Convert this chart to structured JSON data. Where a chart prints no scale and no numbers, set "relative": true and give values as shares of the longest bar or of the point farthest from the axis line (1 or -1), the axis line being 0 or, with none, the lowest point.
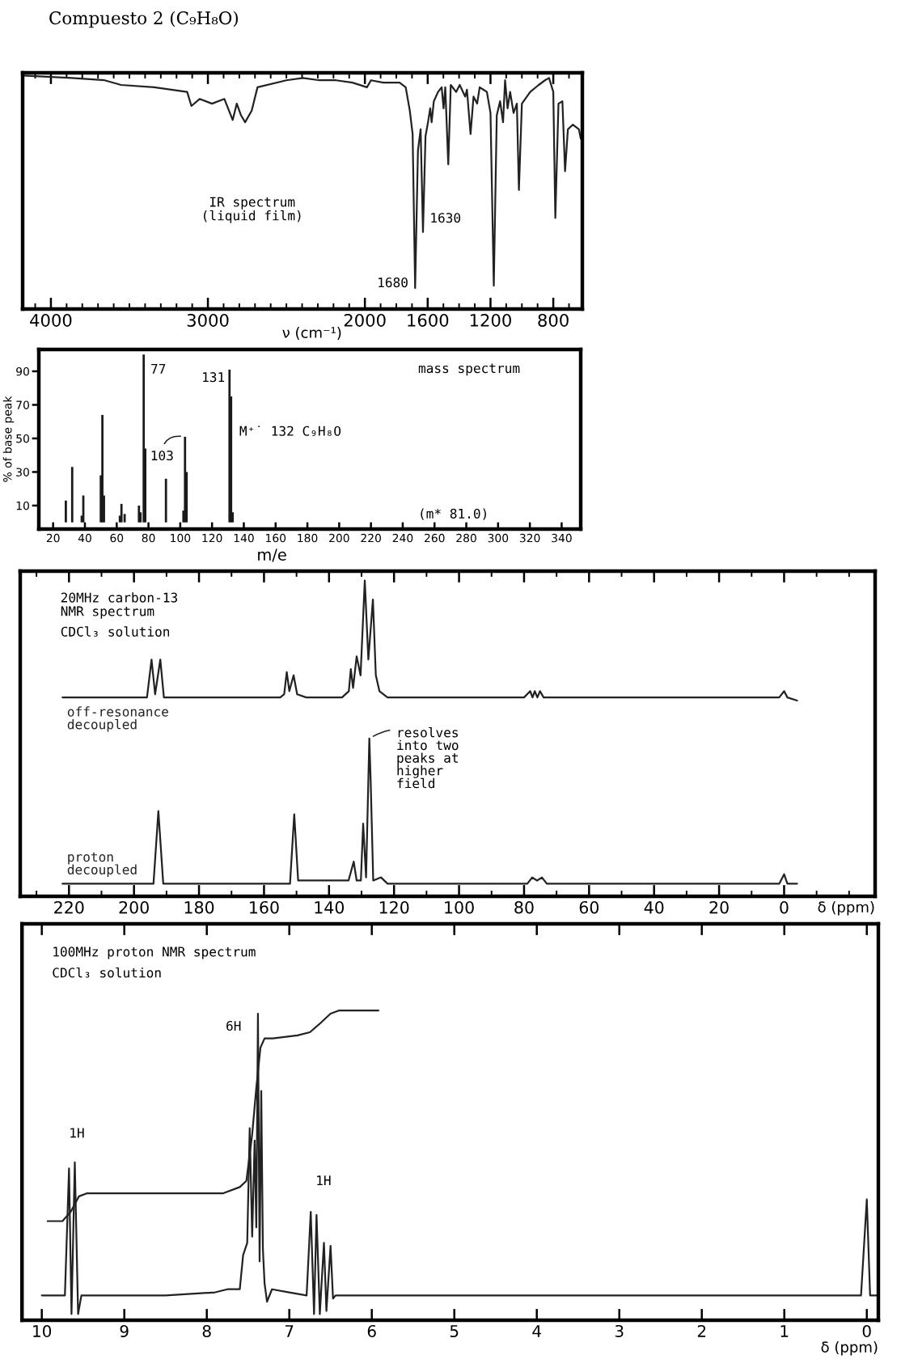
{
  "chart_data": [
    {
      "type": "line",
      "title": "Compuesto 2 (C₉H₈O)",
      "xlabel": "ν (cm⁻¹)",
      "relative": true,
      "xlim": [
        4180,
        615
      ],
      "xticks": [
        {
          "value": 4100,
          "label": null
        },
        4000,
        {
          "value": 3900,
          "label": null
        },
        {
          "value": 3800,
          "label": null
        },
        {
          "value": 3700,
          "label": null
        },
        {
          "value": 3600,
          "label": null
        },
        {
          "value": 3500,
          "label": null
        },
        {
          "value": 3400,
          "label": null
        },
        {
          "value": 3300,
          "label": null
        },
        {
          "value": 3200,
          "label": null
        },
        {
          "value": 3100,
          "label": null
        },
        3000,
        {
          "value": 2900,
          "label": null
        },
        {
          "value": 2800,
          "label": null
        },
        {
          "value": 2700,
          "label": null
        },
        {
          "value": 2600,
          "label": null
        },
        {
          "value": 2500,
          "label": null
        },
        {
          "value": 2400,
          "label": null
        },
        {
          "value": 2300,
          "label": null
        },
        {
          "value": 2200,
          "label": null
        },
        {
          "value": 2100,
          "label": null
        },
        2000,
        {
          "value": 1900,
          "label": null
        },
        {
          "value": 1800,
          "label": null
        },
        {
          "value": 1700,
          "label": null
        },
        1600,
        {
          "value": 1500,
          "label": null
        },
        {
          "value": 1400,
          "label": null
        },
        {
          "value": 1300,
          "label": null
        },
        1200,
        {
          "value": 1100,
          "label": null
        },
        {
          "value": 1000,
          "label": null
        },
        {
          "value": 900,
          "label": null
        },
        800,
        {
          "value": 700,
          "label": null
        }
      ],
      "x": [
        4180,
        3868,
        3658,
        3553,
        3342,
        3132,
        3105,
        3053,
        2974,
        2895,
        2842,
        2816,
        2789,
        2763,
        2721,
        2684,
        2500,
        2395,
        2289,
        2184,
        2079,
        1987,
        1961,
        1883,
        1779,
        1740,
        1714,
        1696,
        1680,
        1662,
        1645,
        1630,
        1614,
        1598,
        1584,
        1575,
        1561,
        1534,
        1511,
        1499,
        1488,
        1469,
        1453,
        1419,
        1396,
        1361,
        1350,
        1327,
        1308,
        1285,
        1269,
        1246,
        1223,
        1200,
        1179,
        1160,
        1139,
        1120,
        1107,
        1091,
        1075,
        1053,
        1032,
        1019,
        1000,
        947,
        893,
        853,
        827,
        800,
        787,
        767,
        742,
        725,
        707,
        675,
        637,
        625
      ],
      "series": [
        {
          "color": "#222222",
          "values": [
            1.0,
            0.99,
            0.98,
            0.96,
            0.95,
            0.93,
            0.87,
            0.9,
            0.88,
            0.9,
            0.81,
            0.88,
            0.83,
            0.8,
            0.85,
            0.95,
            0.98,
            0.99,
            0.98,
            0.98,
            0.97,
            0.95,
            0.98,
            0.97,
            0.97,
            0.95,
            0.85,
            0.75,
            0.09,
            0.68,
            0.77,
            0.33,
            0.74,
            0.8,
            0.86,
            0.8,
            0.89,
            0.93,
            0.95,
            0.86,
            0.95,
            0.62,
            0.96,
            0.93,
            0.96,
            0.91,
            0.94,
            0.75,
            0.91,
            0.88,
            0.95,
            0.94,
            0.93,
            0.84,
            0.1,
            0.83,
            0.89,
            0.8,
            0.98,
            0.86,
            0.93,
            0.84,
            0.88,
            0.51,
            0.88,
            0.93,
            0.96,
            0.98,
            0.99,
            0.93,
            0.39,
            0.88,
            0.89,
            0.59,
            0.77,
            0.79,
            0.77,
            0.73
          ]
        }
      ],
      "annotations": [
        "IR spectrum\n(liquid film)",
        {
          "text": "1630",
          "x": 1630,
          "y": 0.33
        },
        {
          "text": "1680",
          "x": 1680,
          "y": 0.09
        }
      ]
    },
    {
      "type": "bar",
      "xlabel": "m/e",
      "ylabel": "% of base peak",
      "xlim": [
        11,
        352
      ],
      "xticks": [
        20,
        40,
        60,
        80,
        100,
        120,
        140,
        160,
        180,
        200,
        220,
        240,
        260,
        280,
        300,
        320,
        340
      ],
      "ylim": [
        -4,
        103
      ],
      "yticks": [
        10,
        30,
        50,
        70,
        90
      ],
      "x": [
        28,
        32,
        38,
        39,
        50,
        51,
        52,
        62,
        63,
        65,
        74,
        75,
        77,
        78,
        91,
        102,
        103,
        104,
        131,
        132,
        133
      ],
      "series": [
        {
          "color": "#1a1a1a",
          "values": [
            13,
            33,
            4,
            16,
            28,
            64,
            16,
            4,
            11,
            5,
            10,
            6,
            100,
            44,
            26,
            7,
            51,
            30,
            91,
            75,
            6
          ]
        }
      ],
      "annotations": [
        "mass spectrum",
        "(m* 81.0)",
        "M⁺˙ 132 C₉H₈O",
        {
          "text": "77",
          "x": 77,
          "y": 100
        },
        {
          "text": "103",
          "x": 103,
          "y": 51
        },
        {
          "text": "131",
          "x": 131,
          "y": 91
        }
      ]
    },
    {
      "type": "line",
      "xlabel": "δ (ppm)",
      "relative": true,
      "xlim": [
        235,
        -28
      ],
      "xticks": [
        {
          "value": 230,
          "label": null
        },
        220,
        {
          "value": 210,
          "label": null
        },
        200,
        {
          "value": 190,
          "label": null
        },
        180,
        {
          "value": 170,
          "label": null
        },
        160,
        {
          "value": 150,
          "label": null
        },
        140,
        {
          "value": 130,
          "label": null
        },
        120,
        {
          "value": 110,
          "label": null
        },
        100,
        {
          "value": 90,
          "label": null
        },
        80,
        {
          "value": 70,
          "label": null
        },
        60,
        {
          "value": 50,
          "label": null
        },
        40,
        {
          "value": 30,
          "label": null
        },
        20,
        {
          "value": 10,
          "label": null
        },
        0,
        {
          "value": -10,
          "label": null
        },
        {
          "value": -20,
          "label": null
        }
      ],
      "series": [
        {
          "name": "off-resonance\ndecoupled",
          "color": "#222222",
          "x": [
            222,
            196,
            194.6,
            193.5,
            191.9,
            190.8,
            155,
            153.8,
            153.0,
            152.2,
            150.9,
            149.8,
            147,
            136,
            133.9,
            133.3,
            132.6,
            131.5,
            130.3,
            129.0,
            127.9,
            126.5,
            125.6,
            124.5,
            122,
            80,
            78.1,
            77.4,
            76.7,
            75.9,
            75.1,
            74,
            1.5,
            0,
            -1,
            -4
          ],
          "values": [
            0.63,
            0.63,
            0.75,
            0.64,
            0.75,
            0.63,
            0.63,
            0.64,
            0.71,
            0.65,
            0.7,
            0.64,
            0.63,
            0.63,
            0.65,
            0.72,
            0.66,
            0.76,
            0.7,
            1.0,
            0.75,
            0.94,
            0.7,
            0.65,
            0.63,
            0.63,
            0.65,
            0.63,
            0.65,
            0.63,
            0.65,
            0.63,
            0.63,
            0.65,
            0.63,
            0.62
          ]
        },
        {
          "name": "proton\ndecoupled",
          "color": "#222222",
          "x": [
            222,
            194,
            192.5,
            191,
            152,
            150.7,
            149.5,
            134,
            132.4,
            131.5,
            130.2,
            129.5,
            128.6,
            127.6,
            127.2,
            126.4,
            124,
            122,
            79,
            77.5,
            76,
            74.5,
            73,
            1.5,
            0,
            -1,
            -4
          ],
          "values": [
            0.04,
            0.04,
            0.27,
            0.04,
            0.04,
            0.26,
            0.05,
            0.05,
            0.11,
            0.05,
            0.05,
            0.23,
            0.06,
            0.5,
            0.37,
            0.05,
            0.06,
            0.04,
            0.04,
            0.06,
            0.05,
            0.06,
            0.04,
            0.04,
            0.07,
            0.04,
            0.04
          ]
        }
      ],
      "annotations": [
        "20MHz carbon-13\nNMR spectrum",
        "CDCl₃ solution",
        {
          "text": "resolves\ninto two\npeaks at\nhigher\nfield",
          "x": 127.6,
          "y": 0.5
        }
      ]
    },
    {
      "type": "line",
      "xlabel": "δ (ppm)",
      "relative": true,
      "xlim": [
        10.24,
        -0.14
      ],
      "xticks": [
        10,
        9,
        8,
        7,
        6,
        5,
        4,
        3,
        2,
        1,
        0
      ],
      "series": [
        {
          "color": "#222222",
          "x": [
            10.0,
            9.72,
            9.67,
            9.64,
            9.6,
            9.56,
            9.52,
            9.4,
            8.5,
            7.9,
            7.75,
            7.6,
            7.56,
            7.51,
            7.48,
            7.45,
            7.42,
            7.4,
            7.38,
            7.36,
            7.34,
            7.32,
            7.3,
            7.27,
            7.21,
            7.0,
            6.79,
            6.74,
            6.7,
            6.67,
            6.63,
            6.58,
            6.55,
            6.5,
            6.47,
            6.44,
            3.0,
            0.07,
            0.0,
            -0.04,
            -0.12
          ],
          "values": [
            0.08,
            0.08,
            0.49,
            0.02,
            0.51,
            0.02,
            0.08,
            0.08,
            0.08,
            0.09,
            0.1,
            0.1,
            0.21,
            0.25,
            0.62,
            0.27,
            0.58,
            0.3,
            0.99,
            0.19,
            0.74,
            0.23,
            0.12,
            0.06,
            0.1,
            0.09,
            0.08,
            0.35,
            0.02,
            0.34,
            0.02,
            0.25,
            0.03,
            0.24,
            0.07,
            0.08,
            0.08,
            0.08,
            0.39,
            0.08,
            0.08
          ]
        },
        {
          "color": "#222222",
          "x": [
            9.93,
            9.75,
            9.65,
            9.55,
            9.45,
            8.5,
            7.8,
            7.6,
            7.52,
            7.45,
            7.4,
            7.35,
            7.3,
            7.2,
            6.9,
            6.75,
            6.62,
            6.5,
            6.4,
            5.92
          ],
          "values": [
            0.32,
            0.32,
            0.35,
            0.4,
            0.41,
            0.41,
            0.41,
            0.43,
            0.45,
            0.6,
            0.75,
            0.88,
            0.91,
            0.91,
            0.92,
            0.93,
            0.96,
            0.99,
            1.0,
            1.0
          ]
        }
      ],
      "annotations": [
        "100MHz proton NMR spectrum",
        "CDCl₃ solution",
        "1H",
        "6H",
        "1H"
      ]
    }
  ]
}
